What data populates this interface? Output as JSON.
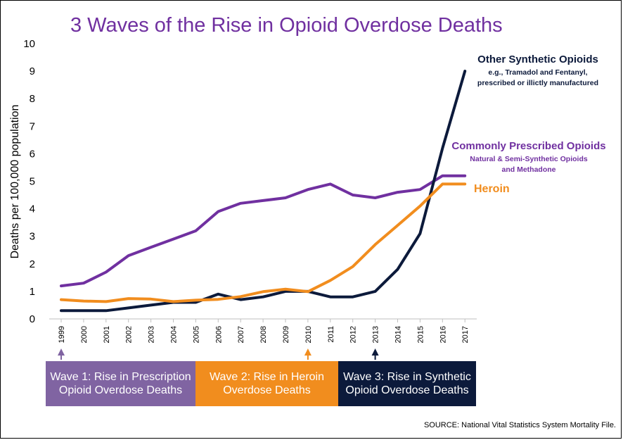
{
  "chart_data": {
    "type": "line",
    "title": "3 Waves of the Rise in Opioid Overdose Deaths",
    "ylabel": "Deaths per 100,000 population",
    "xlabel": "",
    "ylim": [
      0,
      10
    ],
    "yticks": [
      0,
      1,
      2,
      3,
      4,
      5,
      6,
      7,
      8,
      9,
      10
    ],
    "x": [
      "1999",
      "2000",
      "2001",
      "2002",
      "2003",
      "2004",
      "2005",
      "2006",
      "2007",
      "2008",
      "2009",
      "2010",
      "2011",
      "2012",
      "2013",
      "2014",
      "2015",
      "2016",
      "2017"
    ],
    "series": [
      {
        "name": "Commonly Prescribed Opioids",
        "subtitle": [
          "Natural & Semi-Synthetic Opioids",
          "and Methadone"
        ],
        "color": "#7030a0",
        "values": [
          1.2,
          1.3,
          1.7,
          2.3,
          2.6,
          2.9,
          3.2,
          3.9,
          4.2,
          4.3,
          4.4,
          4.7,
          4.9,
          4.5,
          4.4,
          4.6,
          4.7,
          5.2,
          5.2
        ]
      },
      {
        "name": "Heroin",
        "subtitle": [],
        "color": "#f18d1e",
        "values": [
          0.7,
          0.65,
          0.63,
          0.74,
          0.72,
          0.63,
          0.68,
          0.71,
          0.81,
          0.99,
          1.08,
          0.99,
          1.4,
          1.9,
          2.7,
          3.4,
          4.1,
          4.9,
          4.9
        ]
      },
      {
        "name": "Other Synthetic Opioids",
        "subtitle": [
          "e.g., Tramadol and Fentanyl,",
          "prescribed or illictly manufactured"
        ],
        "color": "#0c1a3b",
        "values": [
          0.3,
          0.3,
          0.3,
          0.4,
          0.5,
          0.6,
          0.6,
          0.9,
          0.7,
          0.8,
          1.0,
          1.0,
          0.8,
          0.8,
          1.0,
          1.8,
          3.1,
          6.2,
          9.0
        ]
      }
    ],
    "grid": false,
    "legend": "inline labels at right"
  },
  "waves": [
    {
      "label": "Wave 1: Rise in Prescription Opioid Overdose Deaths",
      "year": "1999",
      "color": "#8064a2"
    },
    {
      "label": "Wave 2: Rise in Heroin Overdose Deaths",
      "year": "2010",
      "color": "#f18d1e"
    },
    {
      "label": "Wave 3: Rise in Synthetic Opioid Overdose Deaths",
      "year": "2013",
      "color": "#0c1a3b"
    }
  ],
  "source": "SOURCE: National Vital Statistics System Mortality File."
}
